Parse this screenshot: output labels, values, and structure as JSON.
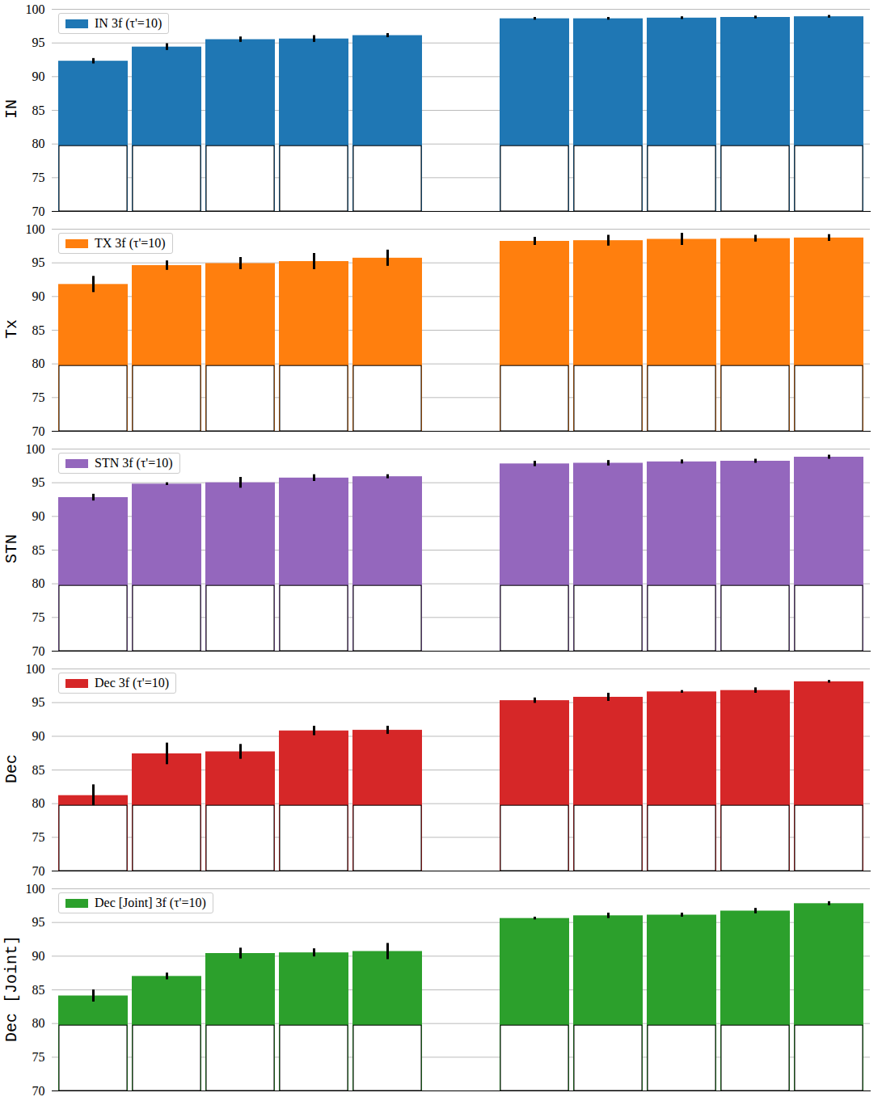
{
  "chart_data": [
    {
      "type": "bar",
      "y_label": "IN",
      "categories": [
        null,
        null,
        null,
        null,
        null,
        null,
        null,
        null,
        null,
        null
      ],
      "series": [
        {
          "name": "IN 3f (τ'=10)",
          "color": "#1f77b4",
          "values": [
            92.3,
            94.4,
            95.5,
            95.6,
            96.1,
            98.6,
            98.6,
            98.7,
            98.8,
            98.9
          ],
          "errors": [
            0.4,
            0.5,
            0.4,
            0.5,
            0.3,
            0.2,
            0.2,
            0.2,
            0.2,
            0.2
          ]
        }
      ],
      "ylim": [
        70,
        100
      ],
      "yticks": [
        70,
        75,
        80,
        85,
        90,
        95,
        100
      ],
      "grid": true,
      "legend": "top-left",
      "tick_labels": "y"
    },
    {
      "type": "bar",
      "y_label": "Tx",
      "categories": [
        null,
        null,
        null,
        null,
        null,
        null,
        null,
        null,
        null,
        null
      ],
      "series": [
        {
          "name": "TX 3f (τ'=10)",
          "color": "#ff7f0e",
          "values": [
            91.8,
            94.6,
            94.9,
            95.2,
            95.7,
            98.2,
            98.3,
            98.5,
            98.6,
            98.7
          ],
          "errors": [
            1.2,
            0.7,
            0.9,
            1.2,
            1.2,
            0.6,
            0.8,
            0.9,
            0.5,
            0.5
          ]
        }
      ],
      "ylim": [
        70,
        100
      ],
      "yticks": [
        70,
        75,
        80,
        85,
        90,
        95,
        100
      ],
      "grid": true,
      "legend": "top-left",
      "tick_labels": "y"
    },
    {
      "type": "bar",
      "y_label": "STN",
      "categories": [
        null,
        null,
        null,
        null,
        null,
        null,
        null,
        null,
        null,
        null
      ],
      "series": [
        {
          "name": "STN 3f (τ'=10)",
          "color": "#9467bd",
          "values": [
            92.8,
            94.8,
            95.0,
            95.7,
            95.9,
            97.8,
            97.9,
            98.1,
            98.2,
            98.8
          ],
          "errors": [
            0.5,
            0.2,
            0.8,
            0.5,
            0.3,
            0.4,
            0.4,
            0.3,
            0.3,
            0.3
          ]
        }
      ],
      "ylim": [
        70,
        100
      ],
      "yticks": [
        70,
        75,
        80,
        85,
        90,
        95,
        100
      ],
      "grid": true,
      "legend": "top-left",
      "tick_labels": "y"
    },
    {
      "type": "bar",
      "y_label": "Dec",
      "categories": [
        null,
        null,
        null,
        null,
        null,
        null,
        null,
        null,
        null,
        null
      ],
      "series": [
        {
          "name": "Dec 3f (τ'=10)",
          "color": "#d62728",
          "values": [
            81.2,
            87.4,
            87.7,
            90.8,
            90.9,
            95.3,
            95.8,
            96.6,
            96.8,
            98.1
          ],
          "errors": [
            1.6,
            1.6,
            1.1,
            0.7,
            0.6,
            0.4,
            0.6,
            0.2,
            0.4,
            0.2
          ]
        }
      ],
      "ylim": [
        70,
        100
      ],
      "yticks": [
        70,
        75,
        80,
        85,
        90,
        95,
        100
      ],
      "grid": true,
      "legend": "top-left",
      "tick_labels": "y"
    },
    {
      "type": "bar",
      "y_label": "Dec [Joint]",
      "categories": [
        null,
        null,
        null,
        null,
        null,
        null,
        null,
        null,
        null,
        null
      ],
      "series": [
        {
          "name": "Dec [Joint] 3f (τ'=10)",
          "color": "#2ca02c",
          "values": [
            84.1,
            87.0,
            90.4,
            90.5,
            90.7,
            95.6,
            96.0,
            96.1,
            96.7,
            97.8
          ],
          "errors": [
            0.9,
            0.5,
            0.8,
            0.6,
            1.2,
            0.2,
            0.4,
            0.3,
            0.4,
            0.3
          ]
        }
      ],
      "ylim": [
        70,
        100
      ],
      "yticks": [
        70,
        75,
        80,
        85,
        90,
        95,
        100
      ],
      "grid": true,
      "legend": "top-left",
      "tick_labels": "y"
    }
  ]
}
